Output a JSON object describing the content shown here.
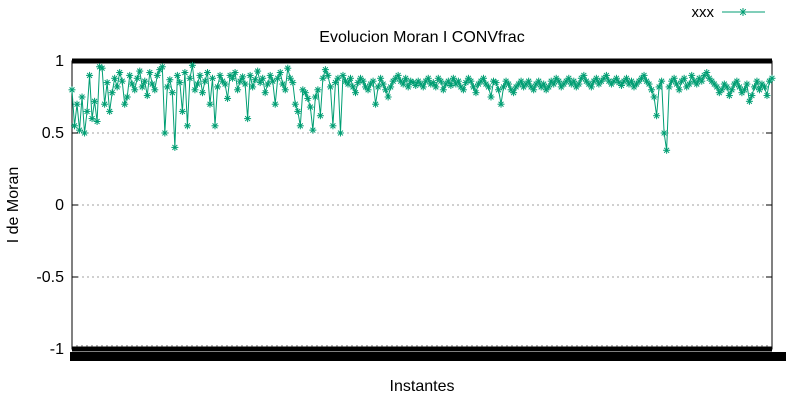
{
  "chart_data": {
    "type": "line",
    "title": "Evolucion Moran I CONVfrac",
    "xlabel": "Instantes",
    "ylabel": "I de Moran",
    "ylim": [
      -1,
      1
    ],
    "yticks": [
      "1",
      "0.5",
      "0",
      "-0.5",
      "-1"
    ],
    "ytick_values": [
      1,
      0.5,
      0,
      -0.5,
      -1
    ],
    "grid": true,
    "legend_position": "top-right",
    "x_tick_count": 700,
    "series": [
      {
        "name": "xxx",
        "color": "#009e73",
        "marker": "star",
        "x_range": [
          0,
          700
        ],
        "values": [
          0.8,
          0.55,
          0.7,
          0.52,
          0.75,
          0.5,
          0.65,
          0.9,
          0.6,
          0.72,
          0.58,
          0.96,
          0.95,
          0.7,
          0.85,
          0.65,
          0.78,
          0.88,
          0.82,
          0.92,
          0.86,
          0.7,
          0.75,
          0.9,
          0.84,
          0.8,
          0.88,
          0.93,
          0.82,
          0.86,
          0.76,
          0.92,
          0.84,
          0.8,
          0.9,
          0.94,
          0.96,
          0.5,
          0.82,
          0.87,
          0.78,
          0.4,
          0.9,
          0.85,
          0.65,
          0.92,
          0.55,
          0.88,
          0.97,
          0.8,
          0.84,
          0.9,
          0.78,
          0.86,
          0.92,
          0.7,
          0.88,
          0.55,
          0.82,
          0.9,
          0.86,
          0.84,
          0.74,
          0.9,
          0.88,
          0.92,
          0.8,
          0.86,
          0.89,
          0.84,
          0.6,
          0.9,
          0.82,
          0.87,
          0.93,
          0.85,
          0.88,
          0.78,
          0.84,
          0.9,
          0.86,
          0.7,
          0.88,
          0.92,
          0.84,
          0.8,
          0.95,
          0.88,
          0.85,
          0.7,
          0.65,
          0.55,
          0.8,
          0.78,
          0.74,
          0.68,
          0.52,
          0.75,
          0.8,
          0.62,
          0.88,
          0.94,
          0.9,
          0.82,
          0.55,
          0.85,
          0.88,
          0.5,
          0.9,
          0.86,
          0.84,
          0.88,
          0.82,
          0.78,
          0.85,
          0.88,
          0.86,
          0.82,
          0.8,
          0.84,
          0.86,
          0.7,
          0.82,
          0.88,
          0.84,
          0.8,
          0.75,
          0.82,
          0.86,
          0.88,
          0.9,
          0.86,
          0.84,
          0.88,
          0.82,
          0.86,
          0.85,
          0.83,
          0.86,
          0.84,
          0.82,
          0.86,
          0.88,
          0.84,
          0.85,
          0.82,
          0.88,
          0.86,
          0.8,
          0.84,
          0.86,
          0.83,
          0.88,
          0.84,
          0.86,
          0.82,
          0.8,
          0.85,
          0.88,
          0.86,
          0.82,
          0.78,
          0.84,
          0.86,
          0.88,
          0.84,
          0.82,
          0.75,
          0.86,
          0.85,
          0.8,
          0.7,
          0.82,
          0.86,
          0.84,
          0.8,
          0.78,
          0.82,
          0.84,
          0.86,
          0.82,
          0.84,
          0.86,
          0.82,
          0.8,
          0.84,
          0.86,
          0.82,
          0.84,
          0.8,
          0.82,
          0.86,
          0.84,
          0.88,
          0.86,
          0.82,
          0.84,
          0.86,
          0.88,
          0.84,
          0.86,
          0.82,
          0.84,
          0.88,
          0.9,
          0.86,
          0.84,
          0.82,
          0.86,
          0.88,
          0.84,
          0.86,
          0.88,
          0.9,
          0.86,
          0.84,
          0.86,
          0.88,
          0.85,
          0.83,
          0.86,
          0.88,
          0.84,
          0.86,
          0.82,
          0.84,
          0.86,
          0.88,
          0.9,
          0.86,
          0.84,
          0.8,
          0.75,
          0.62,
          0.82,
          0.86,
          0.5,
          0.38,
          0.82,
          0.86,
          0.88,
          0.84,
          0.8,
          0.86,
          0.88,
          0.82,
          0.84,
          0.9,
          0.86,
          0.84,
          0.88,
          0.86,
          0.9,
          0.92,
          0.88,
          0.86,
          0.84,
          0.82,
          0.78,
          0.8,
          0.84,
          0.82,
          0.76,
          0.8,
          0.84,
          0.86,
          0.82,
          0.78,
          0.8,
          0.84,
          0.72,
          0.76,
          0.82,
          0.86,
          0.8,
          0.84,
          0.82,
          0.76,
          0.86,
          0.88
        ]
      }
    ]
  }
}
